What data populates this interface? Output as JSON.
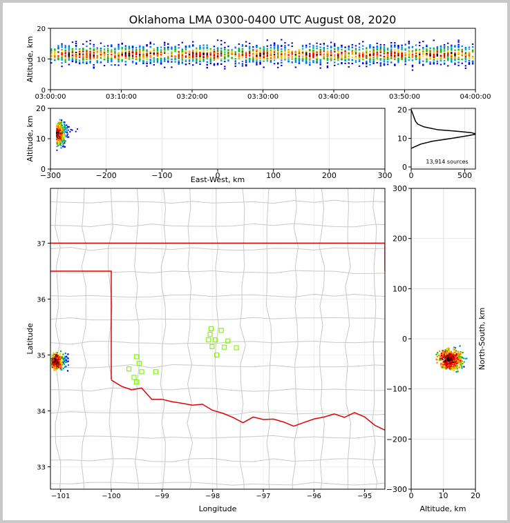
{
  "title": "Oklahoma LMA 0300-0400 UTC August 08, 2020",
  "chart_data": [
    {
      "id": "altitude-time",
      "type": "heatmap",
      "ylabel": "Altitude, km",
      "ylim": [
        0,
        20
      ],
      "yticks": [
        "0",
        "10",
        "20"
      ],
      "xlim": [
        "03:00:00",
        "04:00:00"
      ],
      "xticks": [
        "03:00:00",
        "03:10:00",
        "03:20:00",
        "03:30:00",
        "03:40:00",
        "03:50:00",
        "04:00:00"
      ],
      "activity": {
        "start_minute": 0,
        "end_minute": 60,
        "core_altitude_km": [
          9,
          14
        ],
        "extent_altitude_km": [
          6,
          19
        ]
      }
    },
    {
      "id": "altitude-eastwest",
      "type": "heatmap",
      "xlabel": "East-West, km",
      "ylabel": "Altitude, km",
      "xlim": [
        -300,
        300
      ],
      "ylim": [
        0,
        20
      ],
      "xticks": [
        "−300",
        "−200",
        "−100",
        "0",
        "100",
        "200",
        "300"
      ],
      "yticks": [
        "0",
        "10",
        "20"
      ],
      "cluster": {
        "x_km": [
          -300,
          -250
        ],
        "core_x_km": -290,
        "core_altitude_km": 12
      }
    },
    {
      "id": "altitude-histogram",
      "type": "line",
      "xlim": [
        0,
        600
      ],
      "ylim": [
        0,
        20
      ],
      "xticks": [
        "0",
        "500"
      ],
      "yticks": [
        "0",
        "10",
        "20"
      ],
      "annotation": "13,914 sources",
      "profile": {
        "altitude_km": [
          6.5,
          7,
          8,
          9,
          10,
          11,
          11.5,
          12,
          12.5,
          13,
          14,
          15,
          16,
          17,
          18,
          19,
          20
        ],
        "count": [
          0,
          30,
          90,
          200,
          380,
          540,
          610,
          560,
          420,
          250,
          120,
          60,
          40,
          30,
          20,
          10,
          0
        ]
      }
    },
    {
      "id": "plan-view-map",
      "type": "scatter",
      "xlabel": "Longitude",
      "ylabel": "Latitude",
      "xlim": [
        -101.2,
        -94.6
      ],
      "ylim": [
        32.6,
        37.98
      ],
      "xticks": [
        "−101",
        "−100",
        "−99",
        "−98",
        "−97",
        "−96",
        "−95"
      ],
      "yticks": [
        "33",
        "34",
        "35",
        "36",
        "37"
      ],
      "cluster": {
        "lon": [
          -101.2,
          -100.85
        ],
        "lat": [
          34.65,
          35.15
        ],
        "core_lon": -101.1,
        "core_lat": 34.9
      },
      "stations": [
        [
          -99.5,
          34.97
        ],
        [
          -99.45,
          34.85
        ],
        [
          -99.65,
          34.75
        ],
        [
          -99.4,
          34.7
        ],
        [
          -99.55,
          34.6
        ],
        [
          -99.5,
          34.52
        ],
        [
          -99.12,
          34.7
        ],
        [
          -98.03,
          35.47
        ],
        [
          -98.05,
          35.37
        ],
        [
          -97.83,
          35.44
        ],
        [
          -98.08,
          35.27
        ],
        [
          -97.95,
          35.27
        ],
        [
          -97.7,
          35.25
        ],
        [
          -98.01,
          35.15
        ],
        [
          -97.77,
          35.14
        ],
        [
          -97.53,
          35.13
        ],
        [
          -97.92,
          35.0
        ]
      ],
      "colors": {
        "border": "#e00000",
        "counties": "#c8c8c8",
        "stations": "#7cfc00"
      }
    },
    {
      "id": "northsouth-altitude",
      "type": "heatmap",
      "xlabel": "Altitude, km",
      "ylabel": "North-South, km",
      "xlim": [
        0,
        20
      ],
      "ylim": [
        -300,
        300
      ],
      "xticks": [
        "0",
        "10",
        "20"
      ],
      "yticks": [
        "−300",
        "−200",
        "−100",
        "0",
        "100",
        "200",
        "300"
      ],
      "cluster": {
        "y_km": [
          -65,
          -10
        ],
        "core_y_km": -40,
        "core_altitude_km": 12
      }
    }
  ]
}
